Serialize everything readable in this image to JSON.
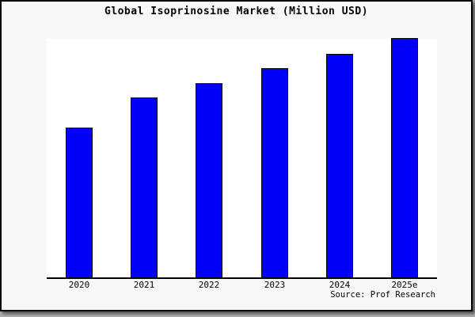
{
  "chart_data": {
    "type": "bar",
    "title": "Global Isoprinosine Market (Million USD)",
    "categories": [
      "2020",
      "2021",
      "2022",
      "2023",
      "2024",
      "2025e"
    ],
    "values": [
      62.5,
      75,
      81,
      87.5,
      93.5,
      100
    ],
    "xlabel": "",
    "ylabel": "",
    "ylim": [
      0,
      100
    ],
    "grid": false,
    "legend": false,
    "y_axis_visible": false,
    "bar_color": "#0000fa",
    "bar_border_color": "#000000",
    "source_note": "Source: Prof Research"
  },
  "colors": {
    "figure_background": "#f8f8f8",
    "plot_background": "#ffffff",
    "axis_line": "#000000",
    "text": "#000000",
    "outer_border": "#000000",
    "page_background": "#aeaeae"
  }
}
